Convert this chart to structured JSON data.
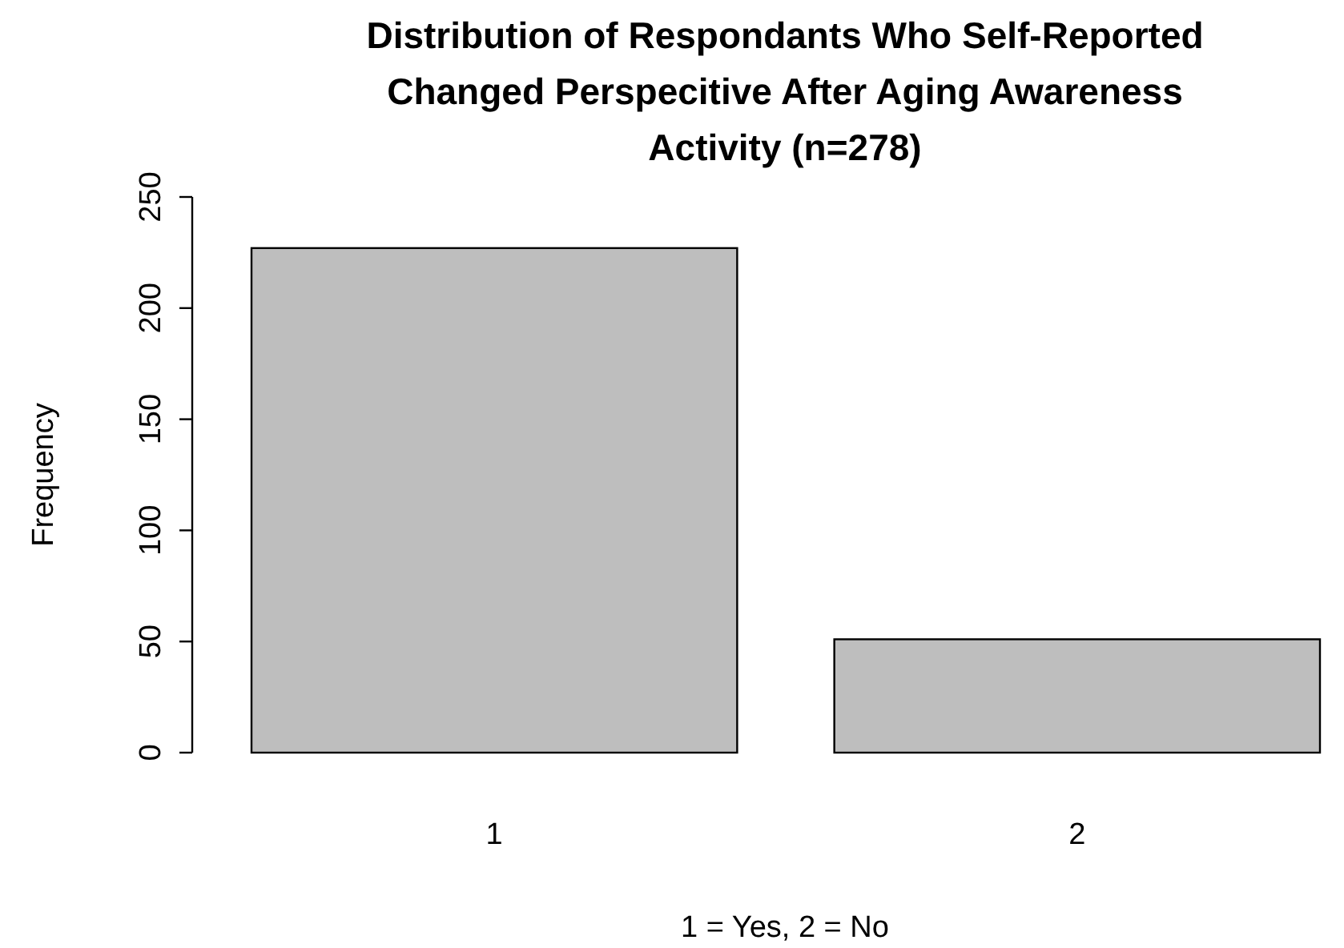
{
  "chart_data": {
    "type": "bar",
    "title": "Distribution of Respondants Who Self-Reported Changed Perspecitive After Aging Awareness Activity (n=278)",
    "xlabel": "1 = Yes, 2 = No",
    "ylabel": "Frequency",
    "categories": [
      "1",
      "2"
    ],
    "values": [
      227,
      51
    ],
    "color": "#bebebe",
    "ylim": [
      0,
      250
    ],
    "yticks": [
      0,
      50,
      100,
      150,
      200,
      250
    ],
    "grid": false
  }
}
